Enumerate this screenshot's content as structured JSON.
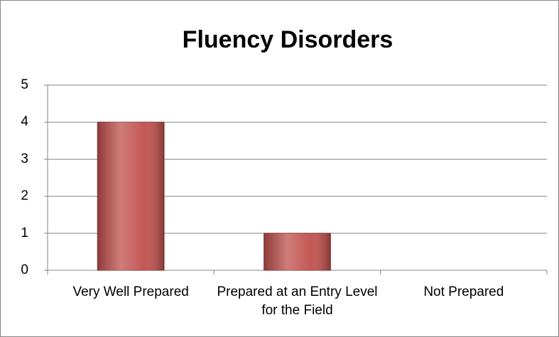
{
  "chart_data": {
    "type": "bar",
    "title": "Fluency Disorders",
    "categories": [
      "Very Well Prepared",
      "Prepared at an Entry Level for the Field",
      "Not Prepared"
    ],
    "values": [
      4,
      1,
      0
    ],
    "color": "#c0504d",
    "ylim": [
      0,
      5
    ],
    "yticks": [
      0,
      1,
      2,
      3,
      4,
      5
    ],
    "grid": true
  }
}
